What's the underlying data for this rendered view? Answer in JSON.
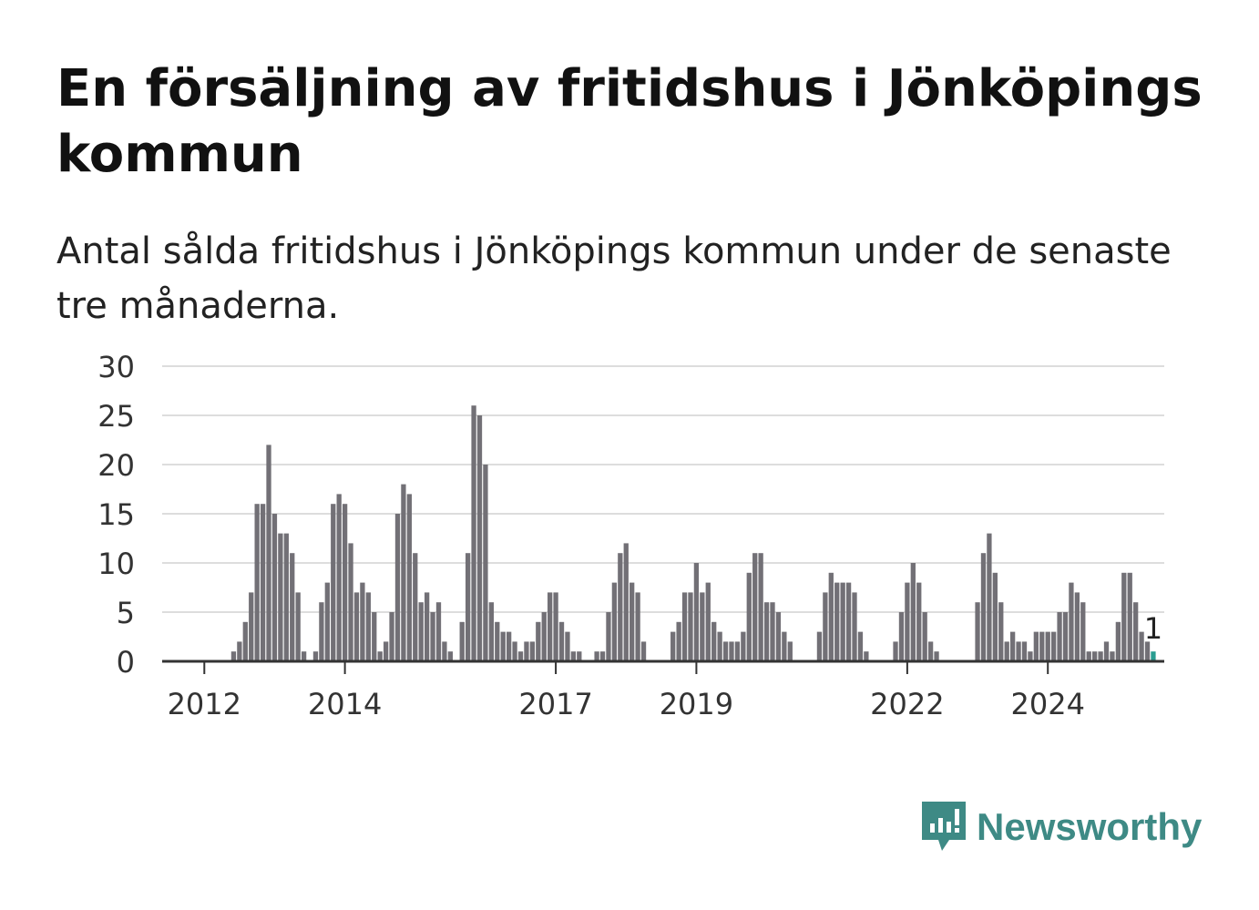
{
  "title": "En försäljning av fritidshus i Jönköpings kommun",
  "subtitle": "Antal sålda fritidshus i Jönköpings kommun under de senaste tre månaderna.",
  "brand": {
    "name": "Newsworthy",
    "color": "#3e8a85",
    "icon": "newsworthy-logo-icon"
  },
  "colors": {
    "bar": "#727076",
    "highlight": "#2a9d91",
    "grid": "#dddddd",
    "axis": "#333333"
  },
  "chart_data": {
    "type": "bar",
    "title": "",
    "xlabel": "",
    "ylabel": "",
    "ylim": [
      0,
      30
    ],
    "yticks": [
      0,
      5,
      10,
      15,
      20,
      25,
      30
    ],
    "grid": true,
    "start_month": "2011-10",
    "x_ticks": [
      {
        "label": "2012",
        "month": "2012-01"
      },
      {
        "label": "2014",
        "month": "2014-01"
      },
      {
        "label": "2017",
        "month": "2017-01"
      },
      {
        "label": "2019",
        "month": "2019-01"
      },
      {
        "label": "2022",
        "month": "2022-01"
      },
      {
        "label": "2024",
        "month": "2024-01"
      }
    ],
    "values": [
      0,
      0,
      0,
      0,
      0,
      0,
      0,
      0,
      1,
      2,
      4,
      7,
      16,
      16,
      22,
      15,
      13,
      13,
      11,
      7,
      1,
      0,
      1,
      6,
      8,
      16,
      17,
      16,
      12,
      7,
      8,
      7,
      5,
      1,
      2,
      5,
      15,
      18,
      17,
      11,
      6,
      7,
      5,
      6,
      2,
      1,
      0,
      4,
      11,
      26,
      25,
      20,
      6,
      4,
      3,
      3,
      2,
      1,
      2,
      2,
      4,
      5,
      7,
      7,
      4,
      3,
      1,
      1,
      0,
      0,
      1,
      1,
      5,
      8,
      11,
      12,
      8,
      7,
      2,
      0,
      0,
      0,
      0,
      3,
      4,
      7,
      7,
      10,
      7,
      8,
      4,
      3,
      2,
      2,
      2,
      3,
      9,
      11,
      11,
      6,
      6,
      5,
      3,
      2,
      0,
      0,
      0,
      0,
      3,
      7,
      9,
      8,
      8,
      8,
      7,
      3,
      1,
      0,
      0,
      0,
      0,
      2,
      5,
      8,
      10,
      8,
      5,
      2,
      1,
      0,
      0,
      0,
      0,
      0,
      0,
      6,
      11,
      13,
      9,
      6,
      2,
      3,
      2,
      2,
      1,
      3,
      3,
      3,
      3,
      5,
      5,
      8,
      7,
      6,
      1,
      1,
      1,
      2,
      1,
      4,
      9,
      9,
      6,
      3,
      2,
      1
    ],
    "highlight_last": true,
    "last_label": "1"
  }
}
